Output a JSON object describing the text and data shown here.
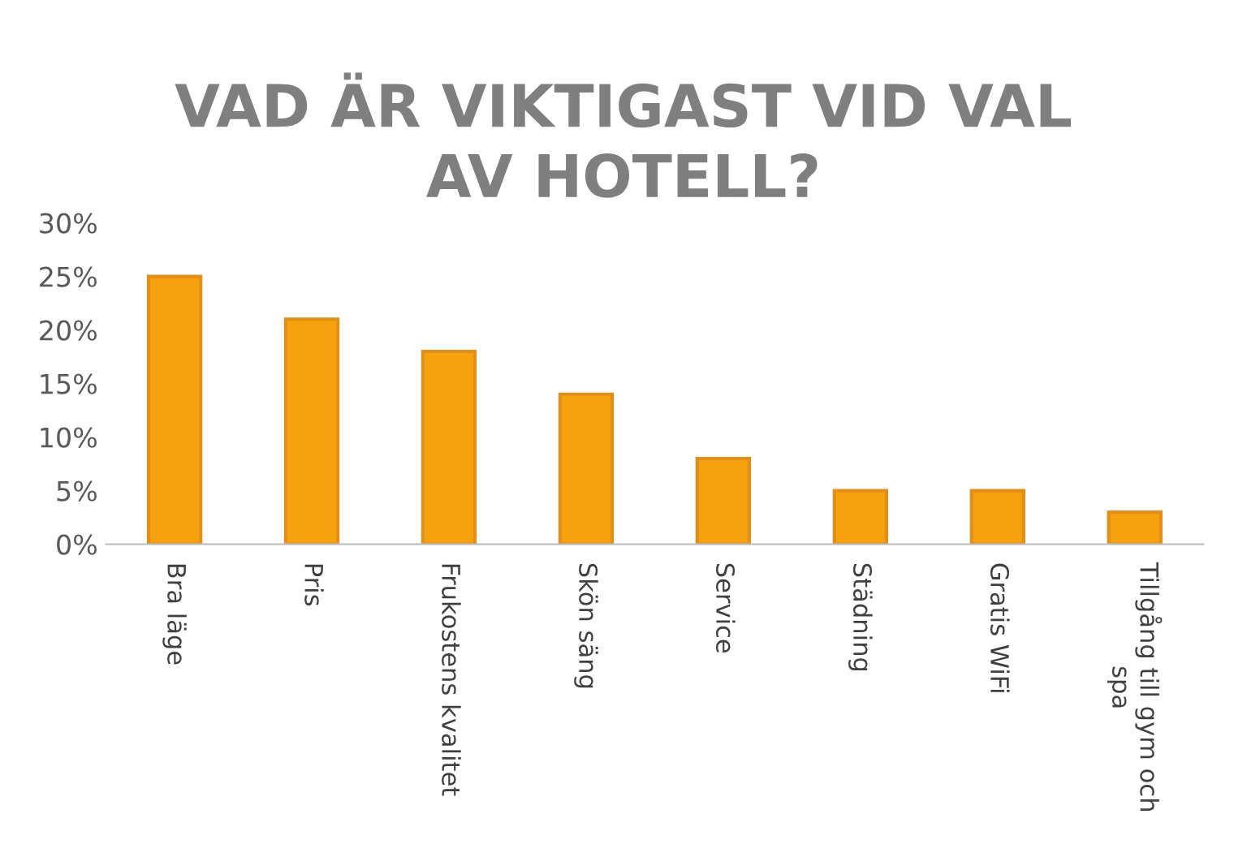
{
  "chart_data": {
    "type": "bar",
    "title": "VAD ÄR VIKTIGAST VID VAL\nAV HOTELL?",
    "categories": [
      "Bra läge",
      "Pris",
      "Frukostens kvalitet",
      "Skön säng",
      "Service",
      "Städning",
      "Gratis WiFi",
      "Tillgång till gym och spa"
    ],
    "values": [
      25,
      21,
      18,
      14,
      8,
      5,
      5,
      3
    ],
    "color": "#f7a10d",
    "ylim": [
      0,
      30
    ],
    "yticks": [
      {
        "value": 0,
        "label": "0%"
      },
      {
        "value": 5,
        "label": "5%"
      },
      {
        "value": 10,
        "label": "10%"
      },
      {
        "value": 15,
        "label": "15%"
      },
      {
        "value": 20,
        "label": "20%"
      },
      {
        "value": 25,
        "label": "25%"
      },
      {
        "value": 30,
        "label": "30%"
      }
    ],
    "grid": false
  }
}
